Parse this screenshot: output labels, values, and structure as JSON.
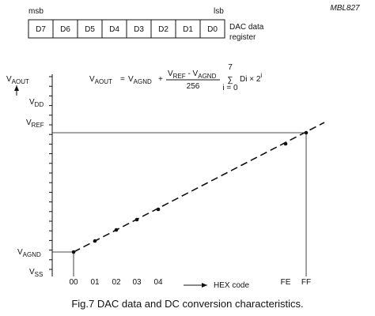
{
  "figure_id": "MBL827",
  "register": {
    "msb": "msb",
    "lsb": "lsb",
    "bits": [
      "D7",
      "D6",
      "D5",
      "D4",
      "D3",
      "D2",
      "D1",
      "D0"
    ],
    "label": [
      "DAC data",
      "register"
    ]
  },
  "y_axis": {
    "label": [
      "V",
      "AOUT"
    ],
    "levels": [
      [
        "V",
        "DD"
      ],
      [
        "V",
        "REF"
      ],
      [
        "V",
        "AGND"
      ],
      [
        "V",
        "SS"
      ]
    ]
  },
  "formula": {
    "lhs": [
      "V",
      "AOUT"
    ],
    "eq": "=",
    "term": [
      "V",
      "AGND"
    ],
    "plus": "+",
    "numerator": [
      "V",
      "REF",
      " - V",
      "AGND"
    ],
    "denominator": "256",
    "sum_top": "7",
    "sum_symbol": "∑",
    "sum_bottom": "i = 0",
    "summand": "Di × 2",
    "exponent": "i"
  },
  "x_axis": {
    "labels": [
      "00",
      "01",
      "02",
      "03",
      "04",
      "FE",
      "FF"
    ],
    "title": "HEX code"
  },
  "caption": "Fig.7  DAC data and DC conversion characteristics."
}
